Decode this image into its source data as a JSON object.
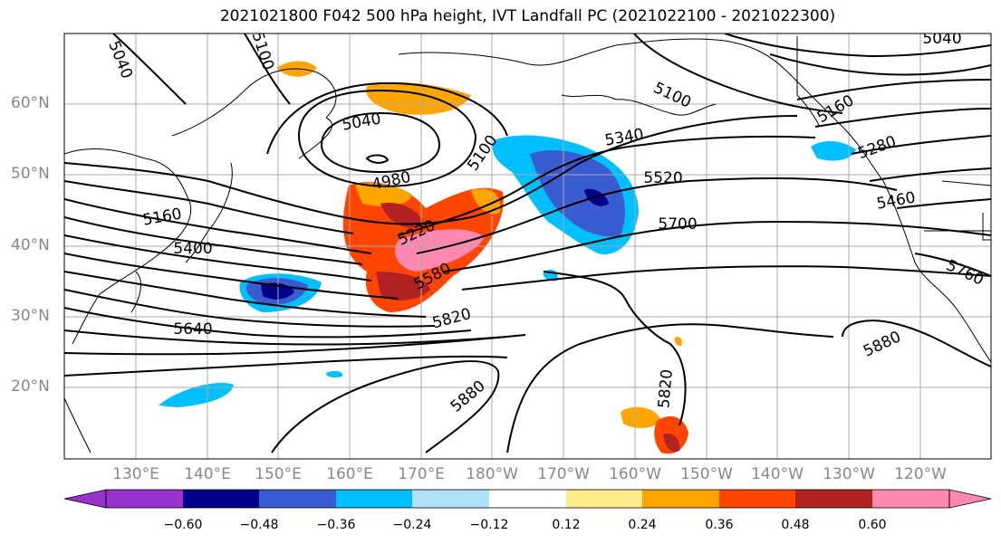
{
  "title": "2021021800 F042 500 hPa height, IVT Landfall PC (2021022100 - 2021022300)",
  "lat_labels": [
    "60°N",
    "50°N",
    "40°N",
    "30°N",
    "20°N"
  ],
  "lon_labels": [
    "130°E",
    "140°E",
    "150°E",
    "160°E",
    "170°E",
    "180°W",
    "170°W",
    "160°W",
    "150°W",
    "140°W",
    "130°W",
    "120°W"
  ],
  "contour_labels": [
    "5040",
    "5100",
    "5040",
    "4980",
    "5100",
    "5160",
    "5400",
    "5220",
    "5580",
    "5520",
    "5700",
    "5340",
    "5820",
    "5640",
    "5880",
    "5820",
    "5880",
    "5760",
    "5460",
    "5280",
    "5160",
    "5100",
    "5040"
  ],
  "colorbar": {
    "ticks": [
      "−0.60",
      "−0.48",
      "−0.36",
      "−0.24",
      "−0.12",
      "0.12",
      "0.24",
      "0.36",
      "0.48",
      "0.60"
    ],
    "colors": [
      "#9932cc",
      "#00008b",
      "#3b5bd0",
      "#00bfff",
      "#b0e0fa",
      "#ffffff",
      "#ffec8b",
      "#ffa500",
      "#ff4500",
      "#b22222",
      "#ff88b0",
      "#ff88b0"
    ]
  }
}
